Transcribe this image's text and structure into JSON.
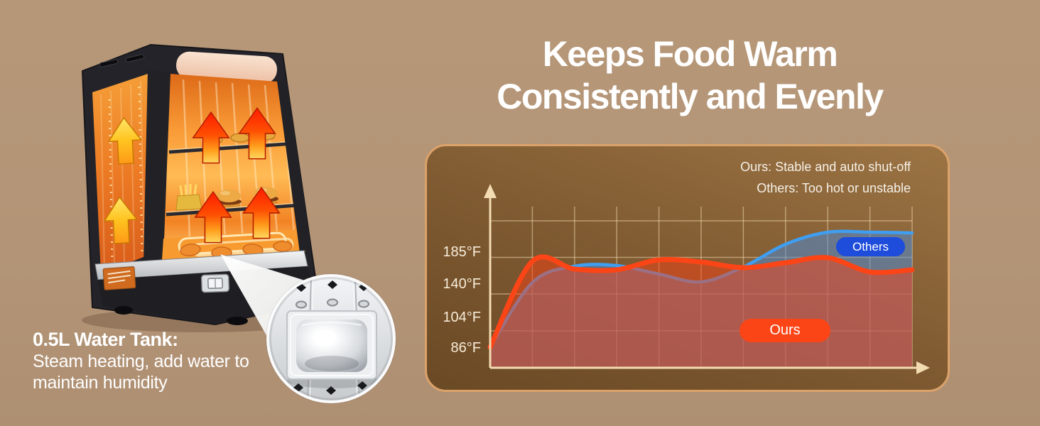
{
  "page": {
    "background_color": "#b49678",
    "title_color": "#ffffff"
  },
  "title": {
    "line1": "Keeps Food Warm",
    "line2": "Consistently and Evenly"
  },
  "water_tank": {
    "heading": "0.5L Water Tank:",
    "body": "Steam heating, add water to maintain humidity"
  },
  "chart": {
    "legend": [
      {
        "label": "Ours: Stable and auto shut-off"
      },
      {
        "label": "Others: Too hot or unstable"
      }
    ],
    "badges": {
      "ours": "Ours",
      "others": "Others"
    },
    "colors": {
      "panel_border": "#dba26a",
      "axis": "#f4dcb2",
      "grid": "rgba(246,222,180,0.5)",
      "ours_line": "#fb4517",
      "ours_fill": "rgba(249,66,22,0.5)",
      "others_line": "#3f9ef2",
      "others_fill": "rgba(72,140,220,0.5)",
      "others_badge_bg": "#1e4cdb",
      "ours_badge_bg": "#fb4517"
    }
  },
  "chart_data": {
    "type": "area",
    "title": "",
    "x": [
      0,
      1,
      2,
      3,
      4,
      5,
      6,
      7,
      8,
      9,
      10
    ],
    "series": [
      {
        "name": "Ours",
        "color": "#fb4517",
        "values": [
          86,
          171,
          160,
          159,
          173,
          170,
          162,
          169,
          176,
          156,
          159
        ]
      },
      {
        "name": "Others",
        "color": "#3f9ef2",
        "values": [
          86,
          141,
          164,
          165,
          153,
          142,
          163,
          195,
          212,
          212,
          211
        ]
      }
    ],
    "y_ticks": [
      {
        "label": "185°F",
        "value": 185
      },
      {
        "label": "140°F",
        "value": 140
      },
      {
        "label": "104°F",
        "value": 104
      },
      {
        "label": "86°F",
        "value": 86
      }
    ],
    "ylim": [
      86,
      215
    ],
    "grid": true,
    "legend_position": "top-right",
    "note": "y scale is non-linear, spaced as printed on the image"
  }
}
